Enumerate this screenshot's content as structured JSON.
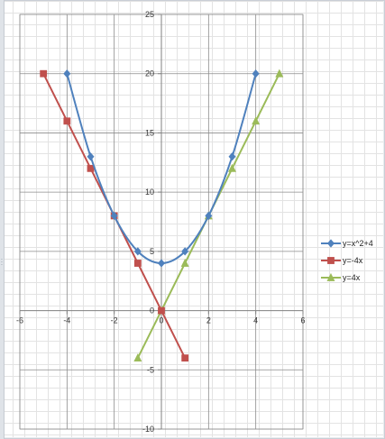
{
  "chart_data": {
    "type": "line",
    "title": "",
    "xlabel": "",
    "ylabel": "",
    "xlim": [
      -6,
      6
    ],
    "ylim": [
      -10,
      25
    ],
    "xticks": [
      -6,
      -4,
      -2,
      0,
      2,
      4,
      6
    ],
    "yticks": [
      -10,
      -5,
      0,
      5,
      10,
      15,
      20,
      25
    ],
    "grid": true,
    "legend_position": "right",
    "series": [
      {
        "name": "y=x^2+4",
        "color": "#4f81bd",
        "marker": "diamond",
        "smooth": true,
        "points": [
          [
            -4,
            20
          ],
          [
            -3,
            13
          ],
          [
            -2,
            8
          ],
          [
            -1,
            5
          ],
          [
            0,
            4
          ],
          [
            1,
            5
          ],
          [
            2,
            8
          ],
          [
            3,
            13
          ],
          [
            4,
            20
          ]
        ]
      },
      {
        "name": "y=-4x",
        "color": "#c0504d",
        "marker": "square",
        "smooth": false,
        "points": [
          [
            -5,
            20
          ],
          [
            -4,
            16
          ],
          [
            -3,
            12
          ],
          [
            -2,
            8
          ],
          [
            -1,
            4
          ],
          [
            0,
            0
          ],
          [
            1,
            -4
          ]
        ]
      },
      {
        "name": "y=4x",
        "color": "#9bbb59",
        "marker": "triangle",
        "smooth": false,
        "points": [
          [
            -1,
            -4
          ],
          [
            0,
            0
          ],
          [
            1,
            4
          ],
          [
            2,
            8
          ],
          [
            3,
            12
          ],
          [
            4,
            16
          ],
          [
            5,
            20
          ]
        ]
      }
    ]
  }
}
